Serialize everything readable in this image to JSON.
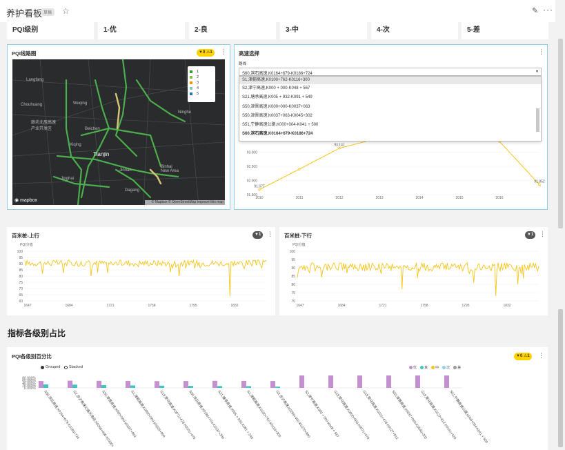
{
  "header": {
    "title": "养护看板",
    "badge": "草稿",
    "star_icon": "star-icon",
    "edit_icon": "pencil-icon",
    "more_icon": "more-icon"
  },
  "pqi_levels": [
    {
      "label": "PQI级别"
    },
    {
      "label": "1-优"
    },
    {
      "label": "2-良"
    },
    {
      "label": "3-中"
    },
    {
      "label": "4-次"
    },
    {
      "label": "5-差"
    }
  ],
  "map_panel": {
    "title": "PQI线路图",
    "filter_count": "0",
    "warn_count": "1",
    "legend": [
      {
        "label": "1",
        "color": "#2ca02c"
      },
      {
        "label": "2",
        "color": "#8bc34a"
      },
      {
        "label": "3",
        "color": "#ff9800"
      },
      {
        "label": "4",
        "color": "#80cbc4"
      },
      {
        "label": "5",
        "color": "#1f77b4"
      }
    ],
    "places": [
      "Langfang",
      "Wuqing",
      "Chouhuang",
      "廊坊北辰高速 产业开发区",
      "Ninghe",
      "Beichen",
      "Xiqing",
      "Tianjin",
      "Binhai New Area",
      "Jinnan",
      "Jinghai",
      "Dagang"
    ],
    "logo": "mapbox",
    "attribution": "© Mapbox © OpenStreetMap Improve this map"
  },
  "highway_panel": {
    "title": "高速选择",
    "field_label": "路线",
    "selected": "S60,滨石高速,K0164+679-K0186+724",
    "options": [
      "S1,津蓟高速,K0100+762-K0116+300",
      "S2,津宁高速,K000 + 000-K048 + 567",
      "S21,塘承高速,K005 + 932-K091 + 549",
      "S50,津晋高速,K000+000-K0037+063",
      "S50,津晋高速,K0037+063-K0045+302",
      "S51,宁静高速公路,K000+004-K041 + 500",
      "S60,滨石高速,K0164+679-K0186+724"
    ]
  },
  "trend_chart_data": {
    "type": "line",
    "x": [
      2010,
      2011,
      2012,
      2013,
      2014,
      2015,
      2016,
      2017
    ],
    "x_ticks": [
      "2010",
      "2011",
      "2012",
      "2013",
      "2014",
      "2015",
      "2016"
    ],
    "y": [
      91.677,
      92.4,
      93.141,
      93.5,
      93.8,
      93.9,
      93.383,
      91.852
    ],
    "point_labels": [
      "91.677",
      "",
      "93.141",
      "",
      "",
      "",
      "93.383",
      "91.852"
    ],
    "y_ticks": [
      "93.500",
      "93.000",
      "92.500",
      "92.000",
      "91.500"
    ],
    "ylim": [
      91.5,
      93.5
    ],
    "color": "#f5c518"
  },
  "up_panel": {
    "title": "百米桩-上行",
    "filter_count": "1",
    "ylabel": "PQI分值",
    "y_ticks": [
      "100",
      "95",
      "90",
      "85",
      "80",
      "75",
      "70",
      "65",
      "60"
    ],
    "x_ticks": [
      "1647",
      "1684",
      "1721",
      "1758",
      "1795",
      "1832"
    ],
    "ylim": [
      60,
      100
    ]
  },
  "down_panel": {
    "title": "百米桩-下行",
    "filter_count": "1",
    "ylabel": "PQI分值",
    "y_ticks": [
      "100",
      "95",
      "90",
      "85",
      "80",
      "75",
      "70"
    ],
    "x_ticks": [
      "1647",
      "1684",
      "1721",
      "1758",
      "1795",
      "1832"
    ],
    "ylim": [
      70,
      100
    ]
  },
  "section_title": "指标各级别占比",
  "chart_data": {
    "type": "bar",
    "title": "PQI各级别百分比",
    "mode_options": [
      "Grouped",
      "Stacked"
    ],
    "selected_mode": "Grouped",
    "legend": [
      {
        "label": "优",
        "color": "#c490d1"
      },
      {
        "label": "良",
        "color": "#40c4c4"
      },
      {
        "label": "中",
        "color": "#f5c518"
      },
      {
        "label": "次",
        "color": "#8fd0e8"
      },
      {
        "label": "差",
        "color": "#999999"
      }
    ],
    "y_ticks": [
      "80.000%",
      "60.000%",
      "40.000%",
      "20.000%",
      "0.000%"
    ],
    "categories": [
      "S60,滨石高速,K0164+679-K0186+724",
      "G2,京沪高速公路天津段,K0266+400-K0300+",
      "S50,津晋高速,K000+000-K0037+063",
      "S1,津蓟高速,K0000+000-K0025+000",
      "G18,荣乌高速,K0071+478-K0101+478",
      "S60,滨石高速,K0186+724-K0197+300",
      "S21,塘承高速,K005 + 932-K091 + 549",
      "S1,津蓟高速,K0100+762-K0116+300",
      "G2,京沪高速,K0266+400-K0270+900",
      "S2,津宁高速,K000 + 000-K048 + 567",
      "G18,荣乌高速,K0000+000-K0071+478",
      "G18,荣乌高速,K0101+478-K0127+812",
      "S50,津晋高速,K0037+063-K0045+302",
      "G18,荣乌高速,K0127+812-K0141+420",
      "S51,宁静高速公路,K000+004-K041 + 500"
    ],
    "series": [
      {
        "name": "优",
        "values": [
          55,
          58,
          57,
          56,
          54,
          55,
          57,
          56,
          55,
          100,
          100,
          100,
          100,
          100,
          100
        ]
      },
      {
        "name": "良",
        "values": [
          28,
          26,
          22,
          20,
          18,
          16,
          15,
          14,
          10,
          0,
          0,
          0,
          0,
          0,
          0
        ]
      }
    ],
    "ylim": [
      0,
      100
    ]
  }
}
